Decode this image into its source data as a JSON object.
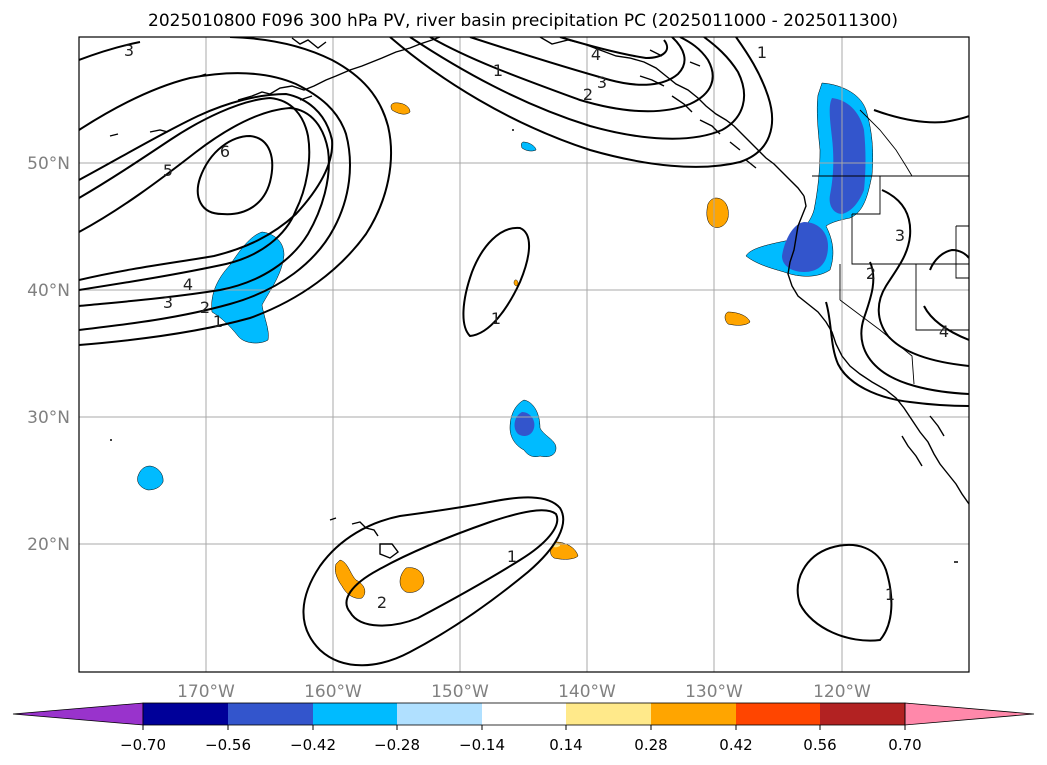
{
  "title": "2025010800 F096 300 hPa PV, river basin precipitation PC (2025011000 - 2025011300)",
  "longitude_labels": [
    "170°W",
    "160°W",
    "150°W",
    "140°W",
    "130°W",
    "120°W"
  ],
  "latitude_labels": [
    "50°N",
    "40°N",
    "30°N",
    "20°N"
  ],
  "pv_contour_labels": [
    "3",
    "5",
    "6",
    "4",
    "3",
    "2",
    "1",
    "4",
    "3",
    "2",
    "1",
    "1",
    "1",
    "2",
    "1",
    "1",
    "3",
    "2",
    "4"
  ],
  "colorbar": {
    "tick_labels": [
      "−0.70",
      "−0.56",
      "−0.42",
      "−0.28",
      "−0.14",
      "0.14",
      "0.28",
      "0.42",
      "0.56",
      "0.70"
    ],
    "colors": [
      "#9933cc",
      "#000099",
      "#3355cc",
      "#00bbff",
      "#b0e0ff",
      "#ffffff",
      "#ffe98a",
      "#ffa500",
      "#ff4500",
      "#b22222",
      "#ff88aa"
    ]
  },
  "fill_colors": {
    "neg_light": "#00bbff",
    "neg_dark": "#3355cc",
    "pos_orange": "#ffa500",
    "pos_yellow": "#ffe98a"
  }
}
